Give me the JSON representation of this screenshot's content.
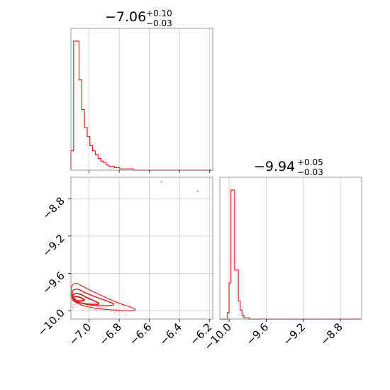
{
  "chart_data": [
    {
      "type": "histogram",
      "panel": "top-left",
      "title": {
        "value": "−7.06",
        "plus": "+0.10",
        "minus": "−0.03"
      },
      "xlim": [
        -7.12,
        -6.18
      ],
      "grid": true,
      "bin_edges": [
        -7.12,
        -7.102,
        -7.084,
        -7.066,
        -7.048,
        -7.03,
        -7.012,
        -6.994,
        -6.976,
        -6.958,
        -6.94,
        -6.922,
        -6.904,
        -6.886,
        -6.868,
        -6.85,
        -6.832,
        -6.814,
        -6.796,
        -6.778,
        -6.76,
        -6.742,
        -6.724,
        -6.706,
        -6.688,
        -6.67
      ],
      "counts": [
        15,
        100,
        100,
        70,
        47,
        33,
        26,
        19,
        15,
        12,
        9,
        7,
        6,
        4,
        3,
        3,
        2,
        2,
        1,
        1,
        1,
        1,
        1,
        0,
        0
      ],
      "color": "#d62728"
    },
    {
      "type": "contour-scatter",
      "panel": "bottom-left",
      "xlim": [
        -7.12,
        -6.18
      ],
      "ylim": [
        -10.09,
        -8.57
      ],
      "xticks": [
        "−7.0",
        "−6.8",
        "−6.6",
        "−6.4",
        "−6.2"
      ],
      "xtick_values": [
        -7.0,
        -6.8,
        -6.6,
        -6.4,
        -6.2
      ],
      "yticks": [
        "−10.0",
        "−9.6",
        "−9.2",
        "−8.8"
      ],
      "ytick_values": [
        -10.0,
        -9.6,
        -9.2,
        -8.8
      ],
      "grid": true,
      "color": "#d62728",
      "outliers": [
        [
          -6.52,
          -8.62
        ],
        [
          -6.28,
          -8.72
        ]
      ]
    },
    {
      "type": "histogram",
      "panel": "bottom-right",
      "title": {
        "value": "−9.94",
        "plus": "+0.05",
        "minus": "−0.03"
      },
      "xlim": [
        -10.1,
        -8.57
      ],
      "xticks": [
        "−10.0",
        "−9.6",
        "−9.2",
        "−8.8"
      ],
      "xtick_values": [
        -10.0,
        -9.6,
        -9.2,
        -8.8
      ],
      "grid": true,
      "bin_edges": [
        -10.02,
        -10.0,
        -9.98,
        -9.96,
        -9.94,
        -9.92,
        -9.9,
        -9.88,
        -9.86,
        -9.84,
        -9.82,
        -9.8,
        -9.78,
        -9.76,
        -9.74,
        -9.72,
        -9.7,
        -9.68,
        -9.66,
        -9.64,
        -9.62,
        -9.6
      ],
      "counts": [
        5,
        28,
        100,
        100,
        38,
        38,
        14,
        7,
        3,
        1,
        1,
        1,
        0,
        0,
        0,
        0,
        0,
        0,
        0,
        0,
        0
      ],
      "color": "#d62728"
    }
  ]
}
